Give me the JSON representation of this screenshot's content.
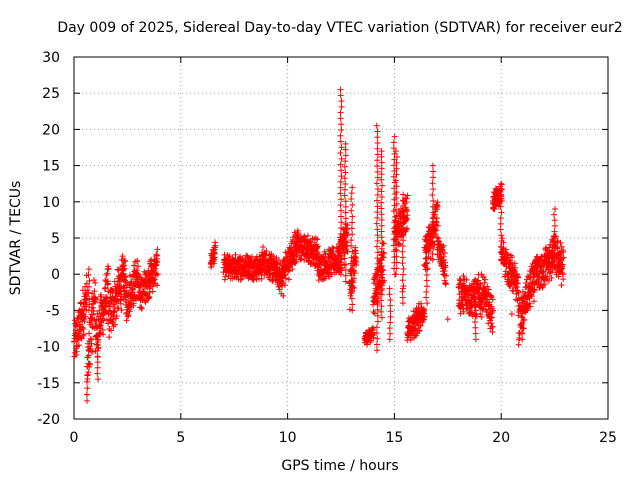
{
  "chart_data": {
    "type": "scatter",
    "title": "Day 009 of 2025, Sidereal Day-to-day VTEC variation (SDTVAR) for receiver eur2",
    "xlabel": "GPS time / hours",
    "ylabel": "SDTVAR / TECUs",
    "xlim": [
      0,
      25
    ],
    "ylim": [
      -20,
      30
    ],
    "xticks": [
      0,
      5,
      10,
      15,
      20,
      25
    ],
    "xtick_labels": [
      "0",
      "5",
      "10",
      "15",
      "20",
      "25"
    ],
    "yticks": [
      -20,
      -15,
      -10,
      -5,
      0,
      5,
      10,
      15,
      20,
      25,
      30
    ],
    "ytick_labels": [
      "-20",
      "-15",
      "-10",
      "-5",
      "0",
      "5",
      "10",
      "15",
      "20",
      "25",
      "30"
    ],
    "grid": true,
    "marker": "+",
    "color": "#ff0000",
    "series": [
      {
        "name": "SDTVAR",
        "segments": [
          {
            "x": [
              0.0,
              0.6
            ],
            "y": [
              -10,
              -3
            ],
            "spread": 3.5
          },
          {
            "x": [
              0.6,
              1.0
            ],
            "y": [
              -14,
              -2
            ],
            "spread": 4.5
          },
          {
            "x": [
              1.0,
              1.6
            ],
            "y": [
              -9,
              -2
            ],
            "spread": 3.5
          },
          {
            "x": [
              1.6,
              2.4
            ],
            "y": [
              -6,
              0
            ],
            "spread": 3.5
          },
          {
            "x": [
              2.4,
              3.0
            ],
            "y": [
              -4,
              0
            ],
            "spread": 3.0
          },
          {
            "x": [
              3.0,
              3.9
            ],
            "y": [
              -3,
              1
            ],
            "spread": 2.5
          },
          {
            "x": [
              6.4,
              6.6
            ],
            "y": [
              2,
              3
            ],
            "spread": 1.5
          },
          {
            "x": [
              7.0,
              8.8
            ],
            "y": [
              1,
              1
            ],
            "spread": 1.8
          },
          {
            "x": [
              8.8,
              9.6
            ],
            "y": [
              2,
              0
            ],
            "spread": 2.0
          },
          {
            "x": [
              9.6,
              10.4
            ],
            "y": [
              -1,
              4
            ],
            "spread": 2.5
          },
          {
            "x": [
              10.4,
              11.4
            ],
            "y": [
              4,
              3
            ],
            "spread": 2.0
          },
          {
            "x": [
              11.4,
              12.4
            ],
            "y": [
              1,
              2
            ],
            "spread": 2.0
          },
          {
            "x": [
              12.4,
              12.8
            ],
            "y": [
              3,
              5
            ],
            "spread": 3.0
          },
          {
            "x": [
              12.9,
              13.2
            ],
            "y": [
              -2,
              2
            ],
            "spread": 3.0
          },
          {
            "x": [
              13.6,
              14.0
            ],
            "y": [
              -9,
              -8
            ],
            "spread": 1.0
          },
          {
            "x": [
              14.0,
              14.5
            ],
            "y": [
              -3,
              2
            ],
            "spread": 3.0
          },
          {
            "x": [
              15.0,
              15.6
            ],
            "y": [
              5,
              9
            ],
            "spread": 2.5
          },
          {
            "x": [
              15.6,
              16.4
            ],
            "y": [
              -8,
              -5
            ],
            "spread": 2.0
          },
          {
            "x": [
              16.4,
              17.0
            ],
            "y": [
              2,
              8
            ],
            "spread": 3.0
          },
          {
            "x": [
              17.0,
              17.4
            ],
            "y": [
              5,
              0
            ],
            "spread": 2.5
          },
          {
            "x": [
              18.0,
              19.2
            ],
            "y": [
              -3,
              -3
            ],
            "spread": 3.0
          },
          {
            "x": [
              19.2,
              19.6
            ],
            "y": [
              -3,
              -6
            ],
            "spread": 2.5
          },
          {
            "x": [
              19.6,
              20.0
            ],
            "y": [
              10,
              11
            ],
            "spread": 1.5
          },
          {
            "x": [
              20.0,
              20.8
            ],
            "y": [
              3,
              -2
            ],
            "spread": 2.5
          },
          {
            "x": [
              20.8,
              21.6
            ],
            "y": [
              -7,
              0
            ],
            "spread": 3.0
          },
          {
            "x": [
              21.6,
              22.4
            ],
            "y": [
              0,
              2
            ],
            "spread": 3.0
          },
          {
            "x": [
              22.4,
              22.9
            ],
            "y": [
              3,
              1
            ],
            "spread": 3.0
          }
        ],
        "spikes": [
          {
            "x": 0.6,
            "y0": -14,
            "y1": -17.5
          },
          {
            "x": 0.7,
            "y0": -5,
            "y1": 0.7
          },
          {
            "x": 1.1,
            "y0": -9,
            "y1": -14.5
          },
          {
            "x": 2.3,
            "y0": 0,
            "y1": 2.5
          },
          {
            "x": 3.6,
            "y0": 0,
            "y1": 2
          },
          {
            "x": 10.5,
            "y0": 4,
            "y1": 6
          },
          {
            "x": 12.5,
            "y0": 0,
            "y1": 25.5
          },
          {
            "x": 12.7,
            "y0": -1,
            "y1": 18
          },
          {
            "x": 13.0,
            "y0": -5,
            "y1": 12
          },
          {
            "x": 14.2,
            "y0": -10.5,
            "y1": 20.5
          },
          {
            "x": 14.4,
            "y0": -6,
            "y1": 17
          },
          {
            "x": 14.8,
            "y0": -9,
            "y1": -2
          },
          {
            "x": 15.0,
            "y0": 0,
            "y1": 19
          },
          {
            "x": 15.1,
            "y0": 0,
            "y1": 17
          },
          {
            "x": 15.4,
            "y0": -4,
            "y1": 11
          },
          {
            "x": 16.5,
            "y0": -4,
            "y1": 3
          },
          {
            "x": 16.8,
            "y0": 2,
            "y1": 15
          },
          {
            "x": 18.8,
            "y0": -9,
            "y1": -1
          },
          {
            "x": 20.0,
            "y0": 3,
            "y1": 12.5
          },
          {
            "x": 21.0,
            "y0": -9,
            "y1": -6
          },
          {
            "x": 22.5,
            "y0": 2,
            "y1": 9
          }
        ],
        "isolated": [
          {
            "x": 17.5,
            "y": -6.2
          },
          {
            "x": 20.5,
            "y": -5.5
          },
          {
            "x": 13.8,
            "y": -9
          },
          {
            "x": 9.8,
            "y": -3
          },
          {
            "x": 15.4,
            "y": -2
          }
        ]
      }
    ]
  }
}
